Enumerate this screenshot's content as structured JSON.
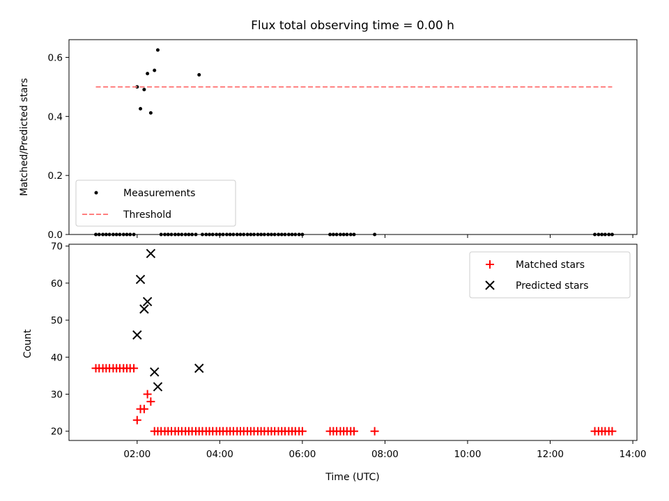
{
  "chart_data": [
    {
      "type": "scatter",
      "title": "Flux total observing time = 0.00 h",
      "xlabel": "",
      "ylabel": "Matched/Predicted stars",
      "xlim": [
        0.35,
        14.1
      ],
      "ylim": [
        0.0,
        0.66
      ],
      "yticks": [
        0.0,
        0.2,
        0.4,
        0.6
      ],
      "ytick_labels": [
        "0.0",
        "0.2",
        "0.4",
        "0.6"
      ],
      "xticks": [
        2,
        4,
        6,
        8,
        10,
        12,
        14
      ],
      "xtick_labels_shown": false,
      "legend_position": "lower-left",
      "series": [
        {
          "name": "Measurements",
          "kind": "scatter",
          "color": "#000000",
          "x": [
            1.0,
            1.08,
            1.17,
            1.25,
            1.33,
            1.42,
            1.5,
            1.58,
            1.67,
            1.75,
            1.83,
            1.92,
            2.0,
            2.08,
            2.17,
            2.25,
            2.33,
            2.42,
            2.5,
            2.58,
            2.67,
            2.75,
            2.83,
            2.92,
            3.0,
            3.08,
            3.17,
            3.25,
            3.33,
            3.42,
            3.5,
            3.58,
            3.67,
            3.75,
            3.83,
            3.92,
            4.0,
            4.08,
            4.17,
            4.25,
            4.33,
            4.42,
            4.5,
            4.58,
            4.67,
            4.75,
            4.83,
            4.92,
            5.0,
            5.08,
            5.17,
            5.25,
            5.33,
            5.42,
            5.5,
            5.58,
            5.67,
            5.75,
            5.83,
            5.92,
            6.0,
            6.67,
            6.75,
            6.83,
            6.92,
            7.0,
            7.08,
            7.17,
            7.25,
            7.75,
            13.08,
            13.17,
            13.25,
            13.33,
            13.42,
            13.5
          ],
          "y": [
            0,
            0,
            0,
            0,
            0,
            0,
            0,
            0,
            0,
            0,
            0,
            0,
            0.5,
            0.426,
            0.491,
            0.545,
            0.412,
            0.556,
            0.625,
            0,
            0,
            0,
            0,
            0,
            0,
            0,
            0,
            0,
            0,
            0,
            0.541,
            0,
            0,
            0,
            0,
            0,
            0,
            0,
            0,
            0,
            0,
            0,
            0,
            0,
            0,
            0,
            0,
            0,
            0,
            0,
            0,
            0,
            0,
            0,
            0,
            0,
            0,
            0,
            0,
            0,
            0,
            0,
            0,
            0,
            0,
            0,
            0,
            0,
            0,
            0,
            0,
            0,
            0,
            0,
            0,
            0
          ]
        },
        {
          "name": "Threshold",
          "kind": "line",
          "style": "dashed",
          "color": "#ff7f7f",
          "x": [
            1.0,
            13.5
          ],
          "y": [
            0.5,
            0.5
          ]
        }
      ]
    },
    {
      "type": "scatter",
      "title": "",
      "xlabel": "Time (UTC)",
      "ylabel": "Count",
      "xlim": [
        0.35,
        14.1
      ],
      "ylim": [
        17.5,
        70.5
      ],
      "yticks": [
        20,
        30,
        40,
        50,
        60,
        70
      ],
      "ytick_labels": [
        "20",
        "30",
        "40",
        "50",
        "60",
        "70"
      ],
      "xticks": [
        2,
        4,
        6,
        8,
        10,
        12,
        14
      ],
      "xtick_labels": [
        "02:00",
        "04:00",
        "06:00",
        "08:00",
        "10:00",
        "12:00",
        "14:00"
      ],
      "legend_position": "upper-right",
      "series": [
        {
          "name": "Matched stars",
          "kind": "scatter",
          "marker": "+",
          "color": "#ff0000",
          "x": [
            1.0,
            1.08,
            1.17,
            1.25,
            1.33,
            1.42,
            1.5,
            1.58,
            1.67,
            1.75,
            1.83,
            1.92,
            2.0,
            2.08,
            2.17,
            2.25,
            2.33,
            2.42,
            2.5,
            2.58,
            2.67,
            2.75,
            2.83,
            2.92,
            3.0,
            3.08,
            3.17,
            3.25,
            3.33,
            3.42,
            3.5,
            3.58,
            3.67,
            3.75,
            3.83,
            3.92,
            4.0,
            4.08,
            4.17,
            4.25,
            4.33,
            4.42,
            4.5,
            4.58,
            4.67,
            4.75,
            4.83,
            4.92,
            5.0,
            5.08,
            5.17,
            5.25,
            5.33,
            5.42,
            5.5,
            5.58,
            5.67,
            5.75,
            5.83,
            5.92,
            6.0,
            6.67,
            6.75,
            6.83,
            6.92,
            7.0,
            7.08,
            7.17,
            7.25,
            7.75,
            13.08,
            13.17,
            13.25,
            13.33,
            13.42,
            13.5
          ],
          "y": [
            37,
            37,
            37,
            37,
            37,
            37,
            37,
            37,
            37,
            37,
            37,
            37,
            23,
            26,
            26,
            30,
            28,
            20,
            20,
            20,
            20,
            20,
            20,
            20,
            20,
            20,
            20,
            20,
            20,
            20,
            20,
            20,
            20,
            20,
            20,
            20,
            20,
            20,
            20,
            20,
            20,
            20,
            20,
            20,
            20,
            20,
            20,
            20,
            20,
            20,
            20,
            20,
            20,
            20,
            20,
            20,
            20,
            20,
            20,
            20,
            20,
            20,
            20,
            20,
            20,
            20,
            20,
            20,
            20,
            20,
            20,
            20,
            20,
            20,
            20,
            20
          ]
        },
        {
          "name": "Predicted stars",
          "kind": "scatter",
          "marker": "x",
          "color": "#000000",
          "x": [
            2.0,
            2.08,
            2.17,
            2.25,
            2.33,
            2.42,
            2.5,
            3.5
          ],
          "y": [
            46,
            61,
            53,
            55,
            68,
            36,
            32,
            37
          ]
        }
      ]
    }
  ]
}
